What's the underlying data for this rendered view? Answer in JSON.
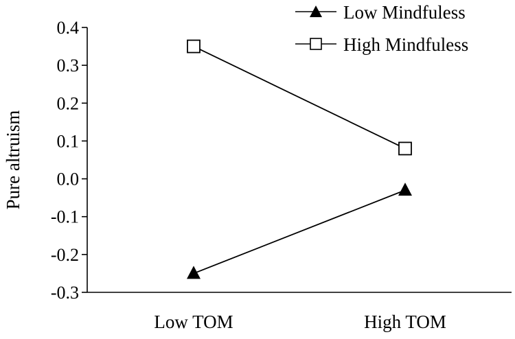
{
  "chart_data": {
    "type": "line",
    "title": "",
    "xlabel": "",
    "ylabel": "Pure altruism",
    "categories": [
      "Low TOM",
      "High TOM"
    ],
    "ylim": [
      -0.3,
      0.4
    ],
    "yticks": [
      0.4,
      0.3,
      0.2,
      0.1,
      0.0,
      -0.1,
      -0.2,
      -0.3
    ],
    "ytick_labels": [
      "0.4",
      "0.3",
      "0.2",
      "0.1",
      "0.0",
      "-0.1",
      "-0.2",
      "-0.3"
    ],
    "legend_position": "top-right",
    "grid": false,
    "series": [
      {
        "name": "Low Mindfuless",
        "marker": "filled-triangle",
        "color": "#000000",
        "values": [
          -0.25,
          -0.03
        ]
      },
      {
        "name": "High Mindfuless",
        "marker": "open-square",
        "color": "#000000",
        "values": [
          0.35,
          0.08
        ]
      }
    ]
  }
}
